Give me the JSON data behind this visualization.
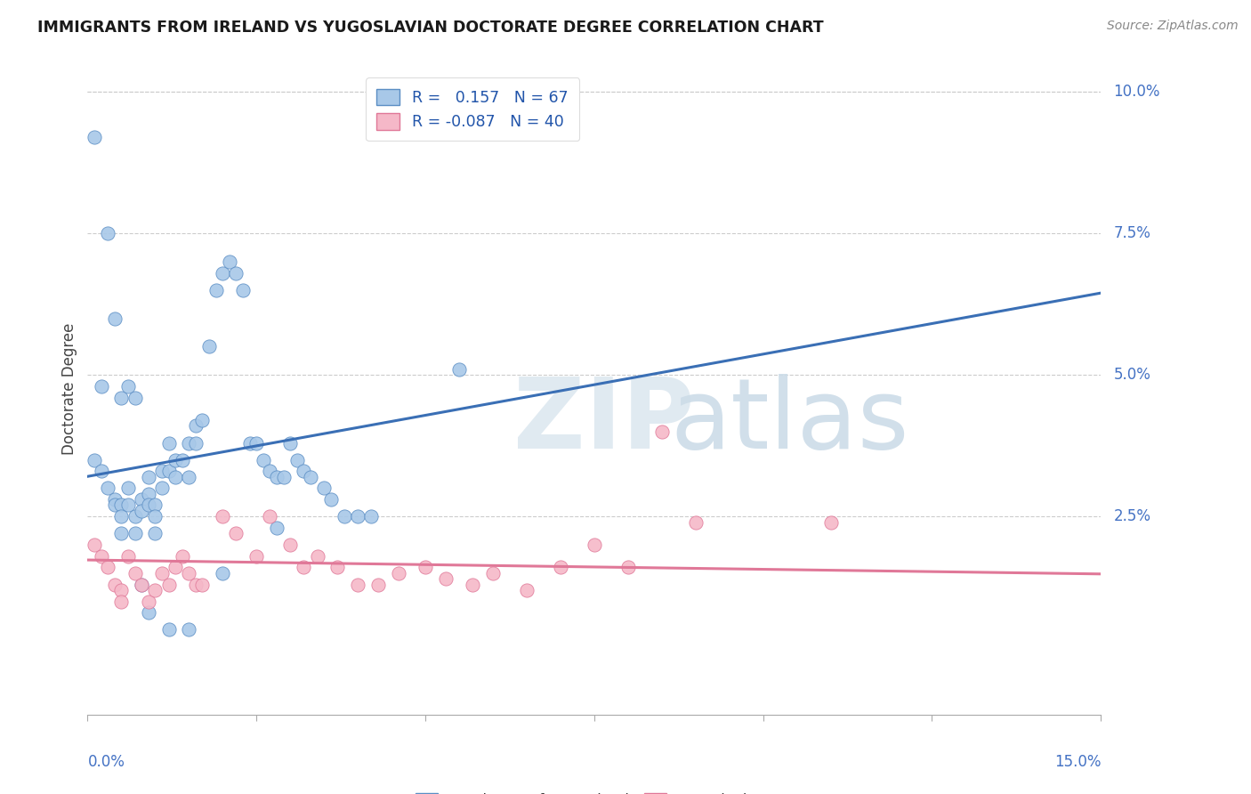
{
  "title": "IMMIGRANTS FROM IRELAND VS YUGOSLAVIAN DOCTORATE DEGREE CORRELATION CHART",
  "source": "Source: ZipAtlas.com",
  "ylabel": "Doctorate Degree",
  "ireland_color": "#a8c8e8",
  "ireland_edge_color": "#5b8ec4",
  "ireland_line_color": "#3a6fb5",
  "yugoslavian_color": "#f5b8c8",
  "yugoslavian_edge_color": "#e07898",
  "yugoslavian_line_color": "#e07898",
  "ireland_R": 0.157,
  "ireland_N": 67,
  "yugoslavian_R": -0.087,
  "yugoslavian_N": 40,
  "xlim": [
    0.0,
    0.15
  ],
  "ylim": [
    -0.01,
    0.105
  ],
  "ytick_vals": [
    0.0,
    0.025,
    0.05,
    0.075,
    0.1
  ],
  "ytick_labels": [
    "",
    "2.5%",
    "5.0%",
    "7.5%",
    "10.0%"
  ],
  "background_color": "#ffffff",
  "grid_color": "#cccccc",
  "ireland_x": [
    0.001,
    0.002,
    0.003,
    0.004,
    0.004,
    0.005,
    0.005,
    0.005,
    0.006,
    0.006,
    0.007,
    0.007,
    0.008,
    0.008,
    0.009,
    0.009,
    0.009,
    0.01,
    0.01,
    0.01,
    0.011,
    0.011,
    0.012,
    0.012,
    0.013,
    0.013,
    0.014,
    0.015,
    0.015,
    0.016,
    0.016,
    0.017,
    0.018,
    0.019,
    0.02,
    0.021,
    0.022,
    0.023,
    0.024,
    0.025,
    0.026,
    0.027,
    0.028,
    0.029,
    0.03,
    0.031,
    0.032,
    0.033,
    0.035,
    0.036,
    0.038,
    0.04,
    0.042,
    0.001,
    0.002,
    0.003,
    0.004,
    0.005,
    0.006,
    0.007,
    0.008,
    0.009,
    0.012,
    0.015,
    0.02,
    0.028,
    0.055
  ],
  "ireland_y": [
    0.035,
    0.033,
    0.03,
    0.028,
    0.027,
    0.027,
    0.025,
    0.022,
    0.03,
    0.027,
    0.025,
    0.022,
    0.028,
    0.026,
    0.032,
    0.029,
    0.027,
    0.027,
    0.025,
    0.022,
    0.033,
    0.03,
    0.038,
    0.033,
    0.035,
    0.032,
    0.035,
    0.038,
    0.032,
    0.041,
    0.038,
    0.042,
    0.055,
    0.065,
    0.068,
    0.07,
    0.068,
    0.065,
    0.038,
    0.038,
    0.035,
    0.033,
    0.032,
    0.032,
    0.038,
    0.035,
    0.033,
    0.032,
    0.03,
    0.028,
    0.025,
    0.025,
    0.025,
    0.092,
    0.048,
    0.075,
    0.06,
    0.046,
    0.048,
    0.046,
    0.013,
    0.008,
    0.005,
    0.005,
    0.015,
    0.023,
    0.051
  ],
  "yugoslavian_x": [
    0.001,
    0.002,
    0.003,
    0.004,
    0.005,
    0.005,
    0.006,
    0.007,
    0.008,
    0.009,
    0.01,
    0.011,
    0.012,
    0.013,
    0.014,
    0.015,
    0.016,
    0.017,
    0.02,
    0.022,
    0.025,
    0.027,
    0.03,
    0.032,
    0.034,
    0.037,
    0.04,
    0.043,
    0.046,
    0.05,
    0.053,
    0.057,
    0.06,
    0.065,
    0.07,
    0.075,
    0.08,
    0.085,
    0.09,
    0.11
  ],
  "yugoslavian_y": [
    0.02,
    0.018,
    0.016,
    0.013,
    0.012,
    0.01,
    0.018,
    0.015,
    0.013,
    0.01,
    0.012,
    0.015,
    0.013,
    0.016,
    0.018,
    0.015,
    0.013,
    0.013,
    0.025,
    0.022,
    0.018,
    0.025,
    0.02,
    0.016,
    0.018,
    0.016,
    0.013,
    0.013,
    0.015,
    0.016,
    0.014,
    0.013,
    0.015,
    0.012,
    0.016,
    0.02,
    0.016,
    0.04,
    0.024,
    0.024
  ]
}
